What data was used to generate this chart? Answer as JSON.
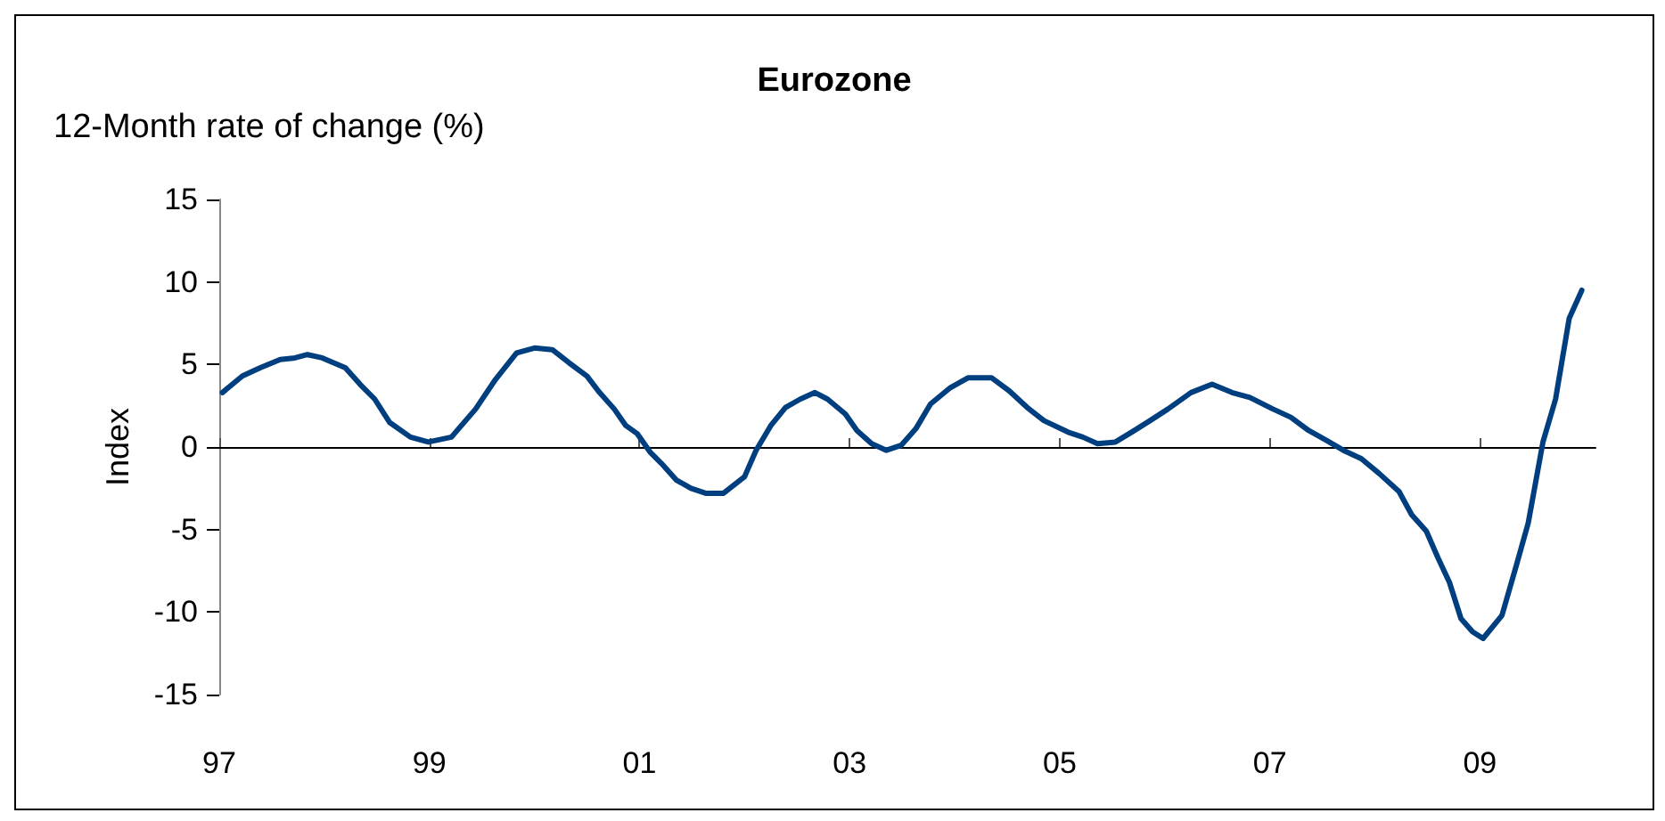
{
  "chart_data": {
    "type": "line",
    "title": "Eurozone",
    "subtitle": "12-Month rate of change (%)",
    "ylabel": "Index",
    "series": [
      {
        "color": "#003f7f",
        "x": [
          1997.03,
          1997.22,
          1997.39,
          1997.58,
          1997.72,
          1997.84,
          1997.98,
          1998.2,
          1998.34,
          1998.48,
          1998.62,
          1998.82,
          1998.99,
          1999.21,
          1999.44,
          1999.63,
          1999.83,
          2000.0,
          2000.17,
          2000.33,
          2000.5,
          2000.62,
          2000.76,
          2000.87,
          2000.98,
          2001.1,
          2001.21,
          2001.35,
          2001.49,
          2001.63,
          2001.8,
          2002.0,
          2002.11,
          2002.25,
          2002.39,
          2002.53,
          2002.67,
          2002.79,
          2002.96,
          2003.07,
          2003.21,
          2003.35,
          2003.49,
          2003.63,
          2003.77,
          2003.96,
          2004.13,
          2004.35,
          2004.52,
          2004.69,
          2004.85,
          2005.08,
          2005.22,
          2005.36,
          2005.53,
          2005.66,
          2005.86,
          2006.03,
          2006.25,
          2006.45,
          2006.64,
          2006.81,
          2007.03,
          2007.2,
          2007.37,
          2007.54,
          2007.7,
          2007.87,
          2008.04,
          2008.23,
          2008.35,
          2008.49,
          2008.6,
          2008.71,
          2008.82,
          2008.93,
          2009.03,
          2009.21,
          2009.35,
          2009.46,
          2009.6,
          2009.72,
          2009.85,
          2009.97
        ],
        "values": [
          3.3,
          4.3,
          4.8,
          5.3,
          5.4,
          5.6,
          5.4,
          4.8,
          3.8,
          2.9,
          1.5,
          0.6,
          0.3,
          0.6,
          2.3,
          4.1,
          5.7,
          6.0,
          5.9,
          5.1,
          4.3,
          3.3,
          2.3,
          1.3,
          0.8,
          -0.3,
          -1.0,
          -2.0,
          -2.5,
          -2.8,
          -2.8,
          -1.8,
          -0.2,
          1.3,
          2.4,
          2.9,
          3.3,
          2.9,
          2.0,
          1.0,
          0.2,
          -0.2,
          0.1,
          1.1,
          2.6,
          3.6,
          4.2,
          4.2,
          3.4,
          2.4,
          1.6,
          0.9,
          0.6,
          0.2,
          0.3,
          0.8,
          1.6,
          2.3,
          3.3,
          3.8,
          3.3,
          3.0,
          2.3,
          1.8,
          1.0,
          0.4,
          -0.2,
          -0.7,
          -1.6,
          -2.7,
          -4.1,
          -5.1,
          -6.7,
          -8.2,
          -10.4,
          -11.2,
          -11.6,
          -10.2,
          -7.1,
          -4.6,
          0.3,
          2.9,
          7.8,
          9.5
        ]
      }
    ],
    "xlim": [
      1997,
      2010.1
    ],
    "xticks": [
      {
        "value": 1997,
        "label": "97"
      },
      {
        "value": 1999,
        "label": "99"
      },
      {
        "value": 2001,
        "label": "01"
      },
      {
        "value": 2003,
        "label": "03"
      },
      {
        "value": 2005,
        "label": "05"
      },
      {
        "value": 2007,
        "label": "07"
      },
      {
        "value": 2009,
        "label": "09"
      }
    ],
    "ylim": [
      -15,
      15
    ],
    "yticks": [
      -15,
      -10,
      -5,
      0,
      5,
      10,
      15
    ],
    "marker": "none",
    "line_style": "solid"
  }
}
